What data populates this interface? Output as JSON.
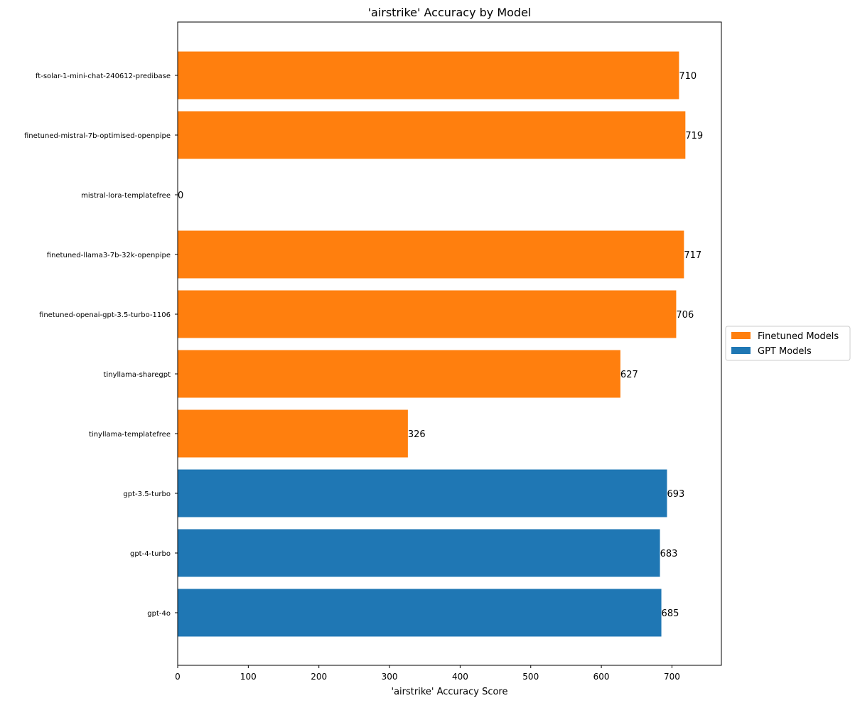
{
  "chart_data": {
    "type": "bar",
    "orientation": "horizontal",
    "title": "'airstrike' Accuracy by Model",
    "xlabel": "'airstrike' Accuracy Score",
    "ylabel": "",
    "xlim": [
      0,
      770
    ],
    "xticks": [
      0,
      100,
      200,
      300,
      400,
      500,
      600,
      700
    ],
    "grid": false,
    "legend_position": "center-right-outside",
    "categories": [
      "ft-solar-1-mini-chat-240612-predibase",
      "finetuned-mistral-7b-optimised-openpipe",
      "mistral-lora-templatefree",
      "finetuned-llama3-7b-32k-openpipe",
      "finetuned-openai-gpt-3.5-turbo-1106",
      "tinyllama-sharegpt",
      "tinyllama-templatefree",
      "gpt-3.5-turbo",
      "gpt-4-turbo",
      "gpt-4o"
    ],
    "values": [
      710,
      719,
      0,
      717,
      706,
      627,
      326,
      693,
      683,
      685
    ],
    "groups": [
      "finetuned",
      "finetuned",
      "finetuned",
      "finetuned",
      "finetuned",
      "finetuned",
      "finetuned",
      "gpt",
      "gpt",
      "gpt"
    ],
    "series": [
      {
        "key": "finetuned",
        "name": "Finetuned Models",
        "color": "#ff7f0e"
      },
      {
        "key": "gpt",
        "name": "GPT Models",
        "color": "#1f77b4"
      }
    ]
  }
}
